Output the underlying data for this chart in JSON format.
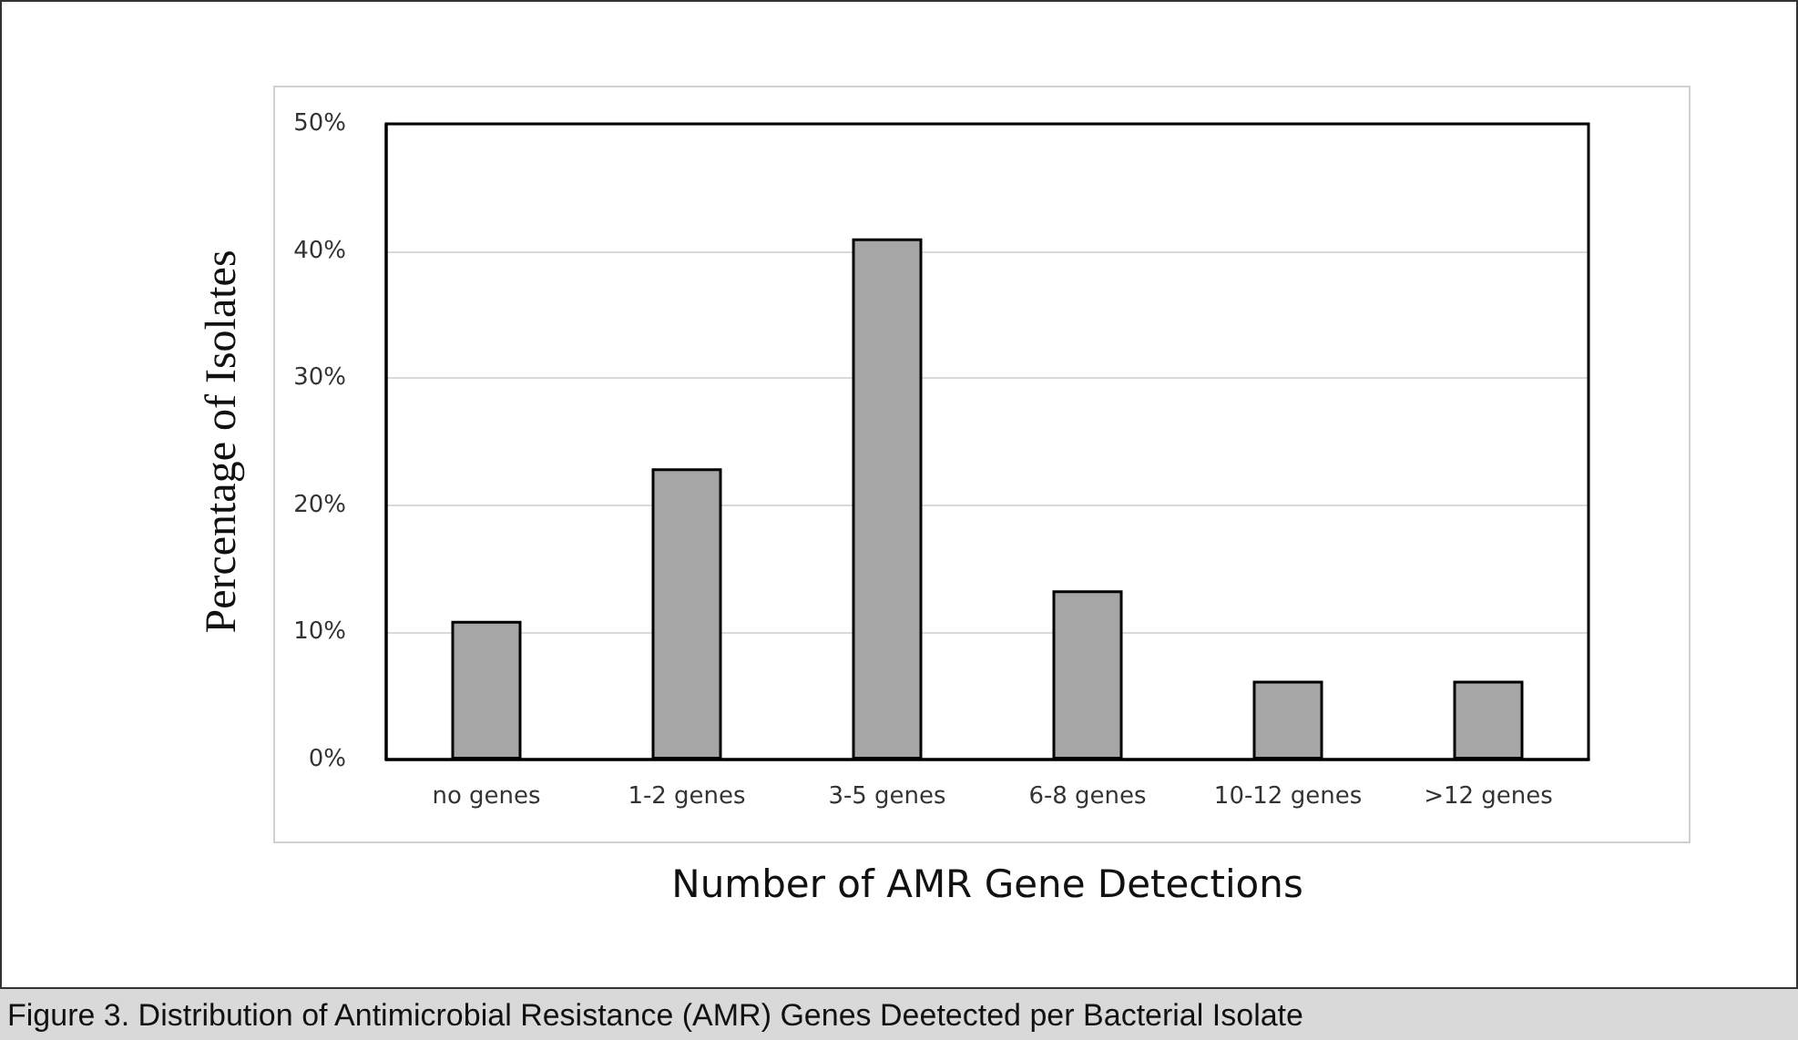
{
  "chart_data": {
    "type": "bar",
    "xlabel": "Number of AMR Gene Detections",
    "ylabel": "Percentage of Isolates",
    "categories": [
      "no genes",
      "1-2 genes",
      "3-5 genes",
      "6-8 genes",
      "10-12 genes",
      ">12 genes"
    ],
    "values": [
      10.9,
      22.9,
      41,
      13.3,
      6.2,
      6.2
    ],
    "color": "#a6a6a6",
    "ylim": [
      0,
      50
    ],
    "yticks": [
      {
        "value": 0,
        "label": "0%"
      },
      {
        "value": 10,
        "label": "10%"
      },
      {
        "value": 20,
        "label": "20%"
      },
      {
        "value": 30,
        "label": "30%"
      },
      {
        "value": 40,
        "label": "40%"
      },
      {
        "value": 50,
        "label": "50%"
      }
    ],
    "grid": "y",
    "annotations": [
      "Figure 3.  Distribution of Antimicrobial Resistance (AMR) Genes Deetected per Bacterial Isolate"
    ]
  }
}
